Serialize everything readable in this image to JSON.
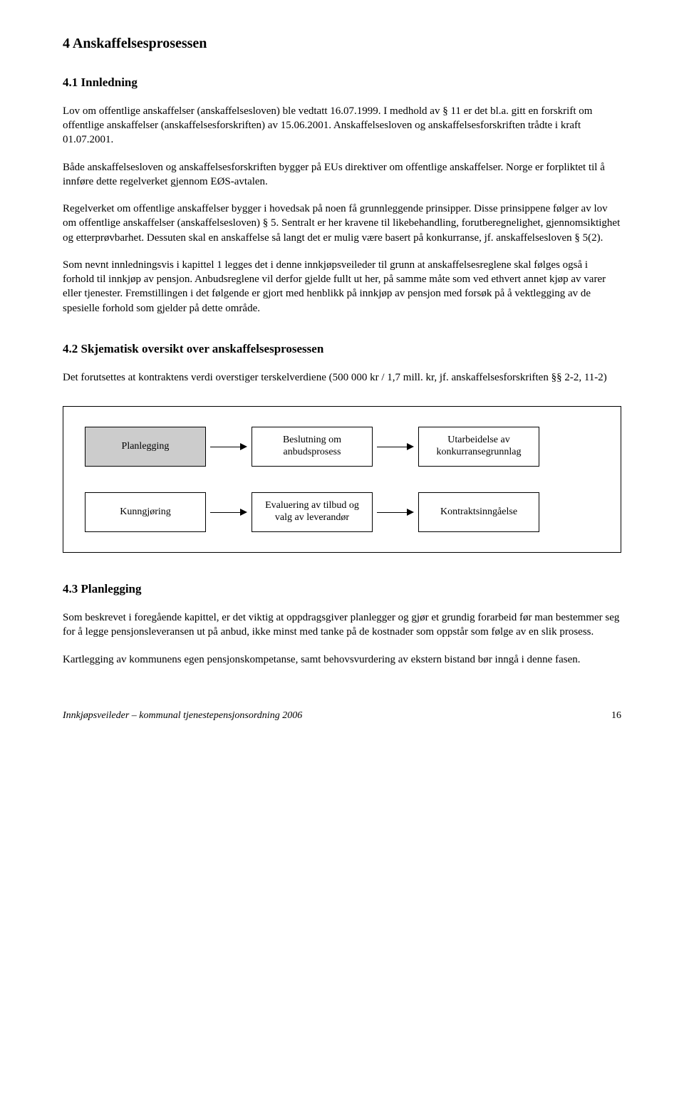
{
  "heading1": "4   Anskaffelsesprosessen",
  "sec41": {
    "title": "4.1   Innledning"
  },
  "p1": "Lov om offentlige anskaffelser (anskaffelsesloven) ble vedtatt 16.07.1999. I medhold av § 11 er det bl.a. gitt en forskrift om offentlige anskaffelser (anskaffelsesforskriften) av 15.06.2001. Anskaffelsesloven og anskaffelsesforskriften trådte i kraft 01.07.2001.",
  "p2": "Både anskaffelsesloven og anskaffelsesforskriften bygger på EUs direktiver om offentlige anskaffelser. Norge er forpliktet til å innføre dette regelverket gjennom EØS-avtalen.",
  "p3": "Regelverket om offentlige anskaffelser bygger i hovedsak på noen få grunnleggende prinsipper. Disse prinsippene følger av lov om offentlige anskaffelser (anskaffelsesloven) § 5. Sentralt er her kravene til likebehandling, forutberegnelighet, gjennomsiktighet og etterprøvbarhet. Dessuten skal en anskaffelse så langt det er mulig være basert på konkurranse, jf. anskaffelsesloven § 5(2).",
  "p4": "Som nevnt innledningsvis i kapittel 1 legges det i denne innkjøpsveileder til grunn at anskaffelsesreglene skal følges også i forhold til innkjøp av pensjon. Anbudsreglene vil derfor gjelde fullt ut her, på samme måte som ved ethvert annet kjøp av varer eller tjenester. Fremstillingen i det følgende er gjort med henblikk på innkjøp av pensjon med forsøk på å vektlegging av de spesielle forhold som gjelder på dette område.",
  "sec42": {
    "title": "4.2   Skjematisk oversikt over anskaffelsesprosessen"
  },
  "p5": "Det forutsettes at kontraktens verdi overstiger terskelverdiene (500 000 kr / 1,7 mill. kr, jf. anskaffelsesforskriften §§ 2-2, 11-2)",
  "flow": {
    "row1": {
      "n1": "Planlegging",
      "n2": "Beslutning om anbudsprosess",
      "n3": "Utarbeidelse av konkurransegrunnlag"
    },
    "row2": {
      "n1": "Kunngjøring",
      "n2": "Evaluering av tilbud og valg av leverandør",
      "n3": "Kontraktsinngåelse"
    }
  },
  "sec43": {
    "title": "4.3   Planlegging"
  },
  "p6": "Som beskrevet i foregående kapittel, er det viktig at oppdragsgiver planlegger og gjør et grundig forarbeid før man bestemmer seg for å legge pensjonsleveransen ut på anbud, ikke minst med tanke på de kostnader som oppstår som følge av en slik prosess.",
  "p7": "Kartlegging av kommunens egen pensjonskompetanse, samt behovsvurdering av ekstern bistand bør inngå i denne fasen.",
  "footer": {
    "left": "Innkjøpsveileder – kommunal tjenestepensjonsordning 2006",
    "page": "16"
  }
}
